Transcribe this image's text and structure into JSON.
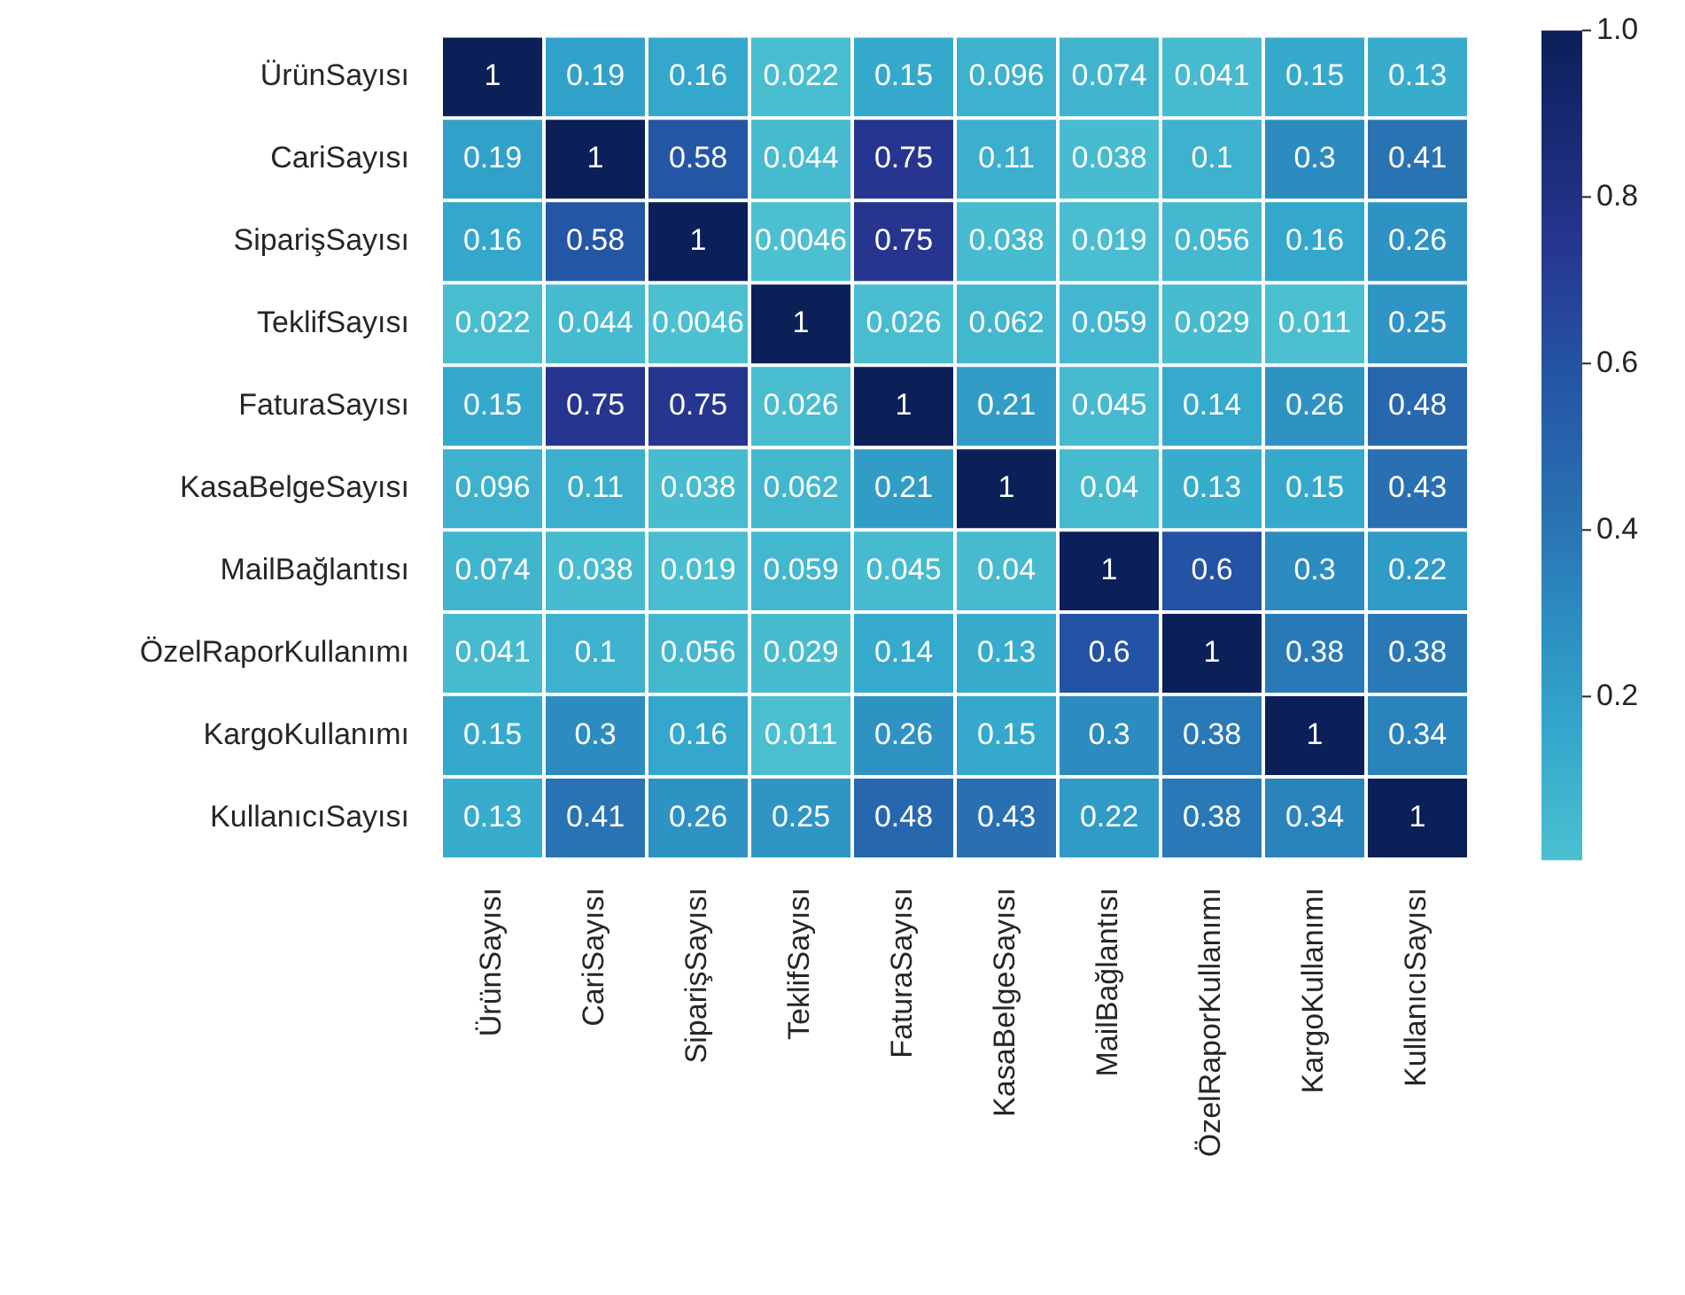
{
  "chart_data": {
    "type": "heatmap",
    "categories": [
      "ÜrünSayısı",
      "CariSayısı",
      "SiparişSayısı",
      "TeklifSayısı",
      "FaturaSayısı",
      "KasaBelgeSayısı",
      "MailBağlantısı",
      "ÖzelRaporKullanımı",
      "KargoKullanımı",
      "KullanıcıSayısı"
    ],
    "y_categories": [
      "ÜrünSayısı",
      "CariSayısı",
      "SiparişSayısı",
      "TeklifSayısı",
      "FaturaSayısı",
      "KasaBelgeSayısı",
      "MailBağlantısı",
      "ÖzelRaporKullanımı",
      "KargoKullanımı",
      "KullanıcıSayısı"
    ],
    "cells": [
      [
        1,
        0.19,
        0.16,
        0.022,
        0.15,
        0.096,
        0.074,
        0.041,
        0.15,
        0.13
      ],
      [
        0.19,
        1,
        0.58,
        0.044,
        0.75,
        0.11,
        0.038,
        0.1,
        0.3,
        0.41
      ],
      [
        0.16,
        0.58,
        1,
        0.0046,
        0.75,
        0.038,
        0.019,
        0.056,
        0.16,
        0.26
      ],
      [
        0.022,
        0.044,
        0.0046,
        1,
        0.026,
        0.062,
        0.059,
        0.029,
        0.011,
        0.25
      ],
      [
        0.15,
        0.75,
        0.75,
        0.026,
        1,
        0.21,
        0.045,
        0.14,
        0.26,
        0.48
      ],
      [
        0.096,
        0.11,
        0.038,
        0.062,
        0.21,
        1,
        0.04,
        0.13,
        0.15,
        0.43
      ],
      [
        0.074,
        0.038,
        0.019,
        0.059,
        0.045,
        0.04,
        1,
        0.6,
        0.3,
        0.22
      ],
      [
        0.041,
        0.1,
        0.056,
        0.029,
        0.14,
        0.13,
        0.6,
        1,
        0.38,
        0.38
      ],
      [
        0.15,
        0.3,
        0.16,
        0.011,
        0.26,
        0.15,
        0.3,
        0.38,
        1,
        0.34
      ],
      [
        0.13,
        0.41,
        0.26,
        0.25,
        0.48,
        0.43,
        0.22,
        0.38,
        0.34,
        1
      ]
    ],
    "clim": [
      0.0046,
      1
    ],
    "cticks": [
      0.2,
      0.4,
      0.6,
      0.8,
      {
        "value": 1,
        "label": "1.0"
      }
    ],
    "data_labels": true
  }
}
